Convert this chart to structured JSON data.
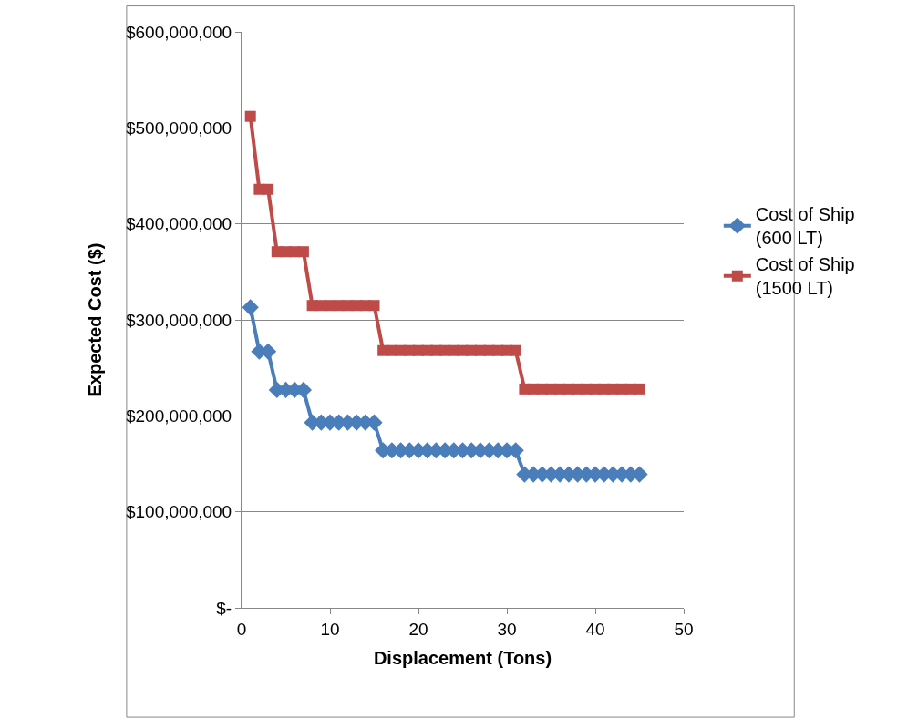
{
  "chart_data": {
    "type": "line",
    "xlabel": "Displacement (Tons)",
    "ylabel": "Expected Cost ($)",
    "x": [
      1,
      2,
      3,
      4,
      5,
      6,
      7,
      8,
      9,
      10,
      11,
      12,
      13,
      14,
      15,
      16,
      17,
      18,
      19,
      20,
      21,
      22,
      23,
      24,
      25,
      26,
      27,
      28,
      29,
      30,
      31,
      32,
      33,
      34,
      35,
      36,
      37,
      38,
      39,
      40,
      41,
      42,
      43,
      44,
      45
    ],
    "series": [
      {
        "name": "Cost of Ship (600 LT)",
        "color": "#4a7ebb",
        "marker": "diamond",
        "values": [
          313000000,
          267000000,
          267000000,
          227000000,
          227000000,
          227000000,
          227000000,
          193000000,
          193000000,
          193000000,
          193000000,
          193000000,
          193000000,
          193000000,
          193000000,
          164000000,
          164000000,
          164000000,
          164000000,
          164000000,
          164000000,
          164000000,
          164000000,
          164000000,
          164000000,
          164000000,
          164000000,
          164000000,
          164000000,
          164000000,
          164000000,
          139000000,
          139000000,
          139000000,
          139000000,
          139000000,
          139000000,
          139000000,
          139000000,
          139000000,
          139000000,
          139000000,
          139000000,
          139000000,
          139000000
        ]
      },
      {
        "name": "Cost of Ship (1500 LT)",
        "color": "#be4b48",
        "marker": "square",
        "values": [
          512000000,
          436000000,
          436000000,
          371000000,
          371000000,
          371000000,
          371000000,
          315000000,
          315000000,
          315000000,
          315000000,
          315000000,
          315000000,
          315000000,
          315000000,
          268000000,
          268000000,
          268000000,
          268000000,
          268000000,
          268000000,
          268000000,
          268000000,
          268000000,
          268000000,
          268000000,
          268000000,
          268000000,
          268000000,
          268000000,
          268000000,
          228000000,
          228000000,
          228000000,
          228000000,
          228000000,
          228000000,
          228000000,
          228000000,
          228000000,
          228000000,
          228000000,
          228000000,
          228000000,
          228000000
        ]
      }
    ],
    "xlim": [
      0,
      50
    ],
    "xticks": [
      0,
      10,
      20,
      30,
      40,
      50
    ],
    "ylim": [
      0,
      600000000
    ],
    "yticks": [
      {
        "value": 0,
        "label": "$-"
      },
      {
        "value": 100000000,
        "label": "$100,000,000"
      },
      {
        "value": 200000000,
        "label": "$200,000,000"
      },
      {
        "value": 300000000,
        "label": "$300,000,000"
      },
      {
        "value": 400000000,
        "label": "$400,000,000"
      },
      {
        "value": 500000000,
        "label": "$500,000,000"
      },
      {
        "value": 600000000,
        "label": "$600,000,000"
      }
    ],
    "grid": "y",
    "legend": "right",
    "line_style": "solid"
  }
}
